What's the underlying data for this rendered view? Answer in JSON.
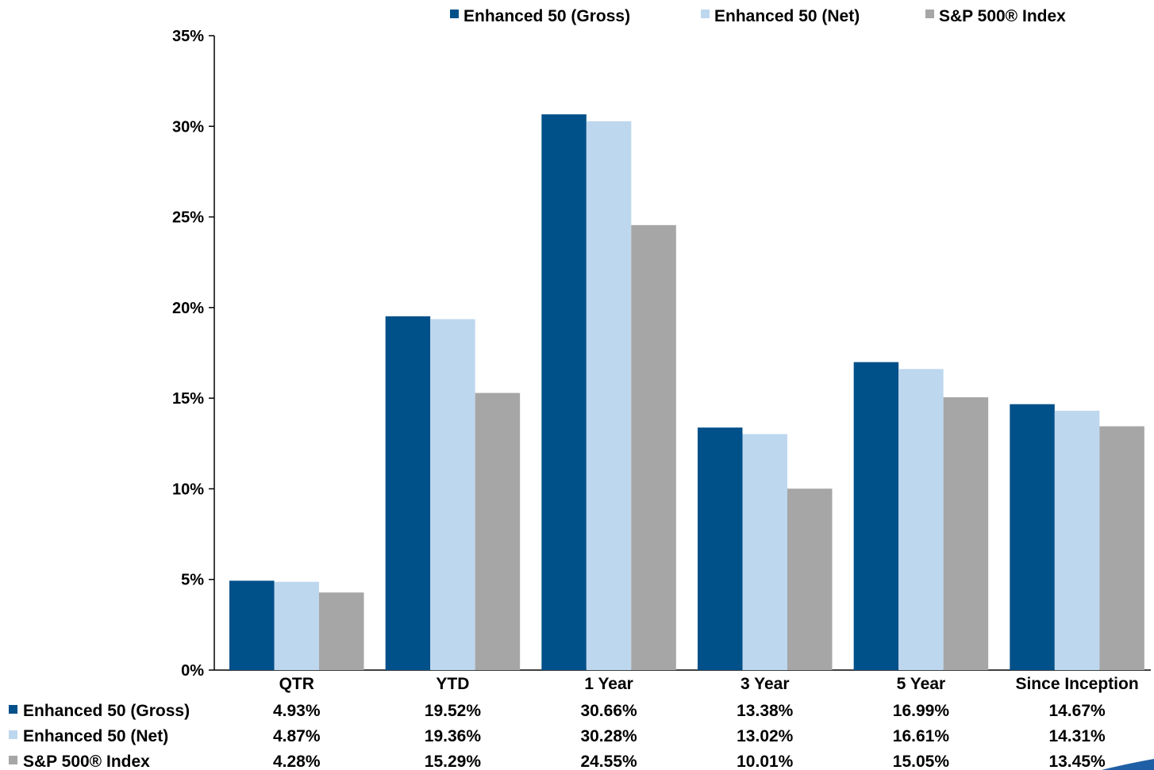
{
  "colors": {
    "gross": "#00508A",
    "net": "#BDD7EE",
    "index": "#A6A6A6",
    "axis": "#000000",
    "corner_mark": "#1F5FA5"
  },
  "legend": {
    "items": [
      "Enhanced 50 (Gross)",
      "Enhanced 50 (Net)",
      "S&P 500® Index"
    ]
  },
  "chart_data": {
    "type": "bar",
    "title": "",
    "xlabel": "",
    "ylabel": "",
    "categories": [
      "QTR",
      "YTD",
      "1 Year",
      "3 Year",
      "5 Year",
      "Since Inception"
    ],
    "ylim": [
      0,
      35
    ],
    "yticks": [
      0,
      5,
      10,
      15,
      20,
      25,
      30,
      35
    ],
    "ytick_labels": [
      "0%",
      "5%",
      "10%",
      "15%",
      "20%",
      "25%",
      "30%",
      "35%"
    ],
    "grid": false,
    "legend_position": "top",
    "series": [
      {
        "name": "Enhanced 50 (Gross)",
        "values": [
          4.93,
          19.52,
          30.66,
          13.38,
          16.99,
          14.67
        ],
        "labels": [
          "4.93%",
          "19.52%",
          "30.66%",
          "13.38%",
          "16.99%",
          "14.67%"
        ]
      },
      {
        "name": "Enhanced 50 (Net)",
        "values": [
          4.87,
          19.36,
          30.28,
          13.02,
          16.61,
          14.31
        ],
        "labels": [
          "4.87%",
          "19.36%",
          "30.28%",
          "13.02%",
          "16.61%",
          "14.31%"
        ]
      },
      {
        "name": "S&P 500® Index",
        "values": [
          4.28,
          15.29,
          24.55,
          10.01,
          15.05,
          13.45
        ],
        "labels": [
          "4.28%",
          "15.29%",
          "24.55%",
          "10.01%",
          "15.05%",
          "13.45%"
        ]
      }
    ]
  }
}
